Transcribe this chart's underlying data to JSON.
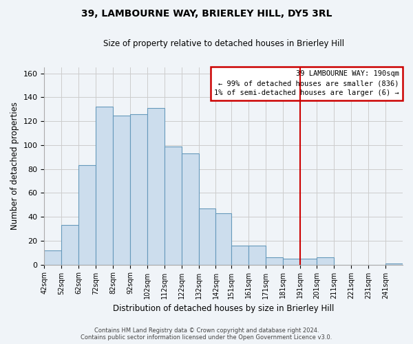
{
  "title": "39, LAMBOURNE WAY, BRIERLEY HILL, DY5 3RL",
  "subtitle": "Size of property relative to detached houses in Brierley Hill",
  "xlabel": "Distribution of detached houses by size in Brierley Hill",
  "ylabel": "Number of detached properties",
  "bar_color": "#ccdded",
  "bar_edge_color": "#6699bb",
  "bin_labels": [
    "42sqm",
    "52sqm",
    "62sqm",
    "72sqm",
    "82sqm",
    "92sqm",
    "102sqm",
    "112sqm",
    "122sqm",
    "132sqm",
    "142sqm",
    "151sqm",
    "161sqm",
    "171sqm",
    "181sqm",
    "191sqm",
    "201sqm",
    "211sqm",
    "221sqm",
    "231sqm",
    "241sqm"
  ],
  "bar_heights": [
    12,
    33,
    83,
    132,
    125,
    126,
    131,
    99,
    93,
    47,
    43,
    16,
    16,
    6,
    5,
    5,
    6,
    0,
    0,
    0,
    1
  ],
  "ylim": [
    0,
    165
  ],
  "yticks": [
    0,
    20,
    40,
    60,
    80,
    100,
    120,
    140,
    160
  ],
  "property_line_x": 191,
  "property_line_color": "#cc0000",
  "legend_title": "39 LAMBOURNE WAY: 190sqm",
  "legend_line1": "← 99% of detached houses are smaller (836)",
  "legend_line2": "1% of semi-detached houses are larger (6) →",
  "footer_line1": "Contains HM Land Registry data © Crown copyright and database right 2024.",
  "footer_line2": "Contains public sector information licensed under the Open Government Licence v3.0.",
  "grid_color": "#cccccc",
  "background_color": "#f0f4f8"
}
